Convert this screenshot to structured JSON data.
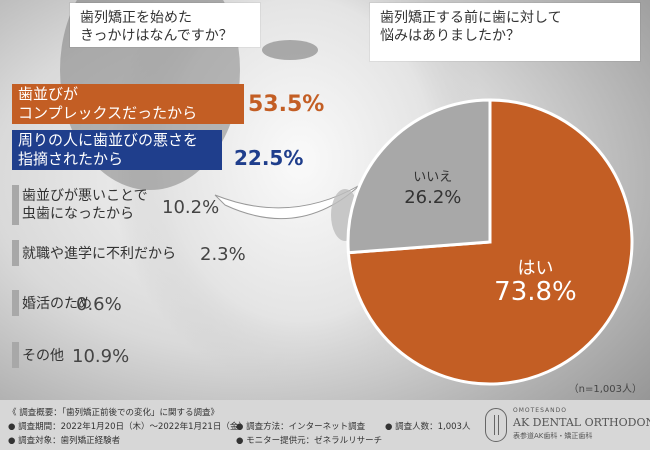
{
  "questions": {
    "q1": [
      "歯列矯正を始めた",
      "きっかけはなんですか？"
    ],
    "q2": [
      "歯列矯正する前に歯に対して",
      "悩みはありましたか？"
    ]
  },
  "bars": [
    {
      "label": [
        "歯並びが",
        "コンプレックスだったから"
      ],
      "value": "53.5%"
    },
    {
      "label": [
        "周りの人に歯並びの悪さを",
        "指摘されたから"
      ],
      "value": "22.5%"
    },
    {
      "label": [
        "歯並びが悪いことで",
        "虫歯になったから"
      ],
      "value": "10.2%"
    },
    {
      "label": [
        "就職や進学に不利だから"
      ],
      "value": "2.3%"
    },
    {
      "label": [
        "婚活のため"
      ],
      "value": "0.6%"
    },
    {
      "label": [
        "その他"
      ],
      "value": "10.9%"
    }
  ],
  "pie": {
    "slices": [
      {
        "label": "はい",
        "value": "73.8%"
      },
      {
        "label": "いいえ",
        "value": "26.2%"
      }
    ],
    "note": "（n=1,003人）"
  },
  "chart_data": [
    {
      "type": "bar",
      "title": "歯列矯正を始めたきっかけはなんですか？",
      "categories": [
        "歯並びがコンプレックスだったから",
        "周りの人に歯並びの悪さを指摘されたから",
        "歯並びが悪いことで虫歯になったから",
        "就職や進学に不利だから",
        "婚活のため",
        "その他"
      ],
      "values": [
        53.5,
        22.5,
        10.2,
        2.3,
        0.6,
        10.9
      ]
    },
    {
      "type": "pie",
      "title": "歯列矯正する前に歯に対して悩みはありましたか？",
      "categories": [
        "はい",
        "いいえ"
      ],
      "values": [
        73.8,
        26.2
      ]
    }
  ],
  "colors": {
    "orange": "#c35e24",
    "blue": "#1f3e8c",
    "gray": "#a8a8a8"
  },
  "footer": {
    "title": "《 調査概要：「歯列矯正前後での変化」に関する調査》",
    "period": "● 調査期間：2022年1月20日（木）～2022年1月21日（金）",
    "method": "● 調査方法：インターネット調査",
    "people": "● 調査人数：1,003人",
    "target": "● 調査対象：歯列矯正経験者",
    "provider": "● モニター提供元：ゼネラルリサーチ"
  },
  "logo": {
    "small": "OMOTESANDO",
    "main": "AK DENTAL ORTHODONTICS",
    "sub": "表参道AK歯科・矯正歯科"
  }
}
